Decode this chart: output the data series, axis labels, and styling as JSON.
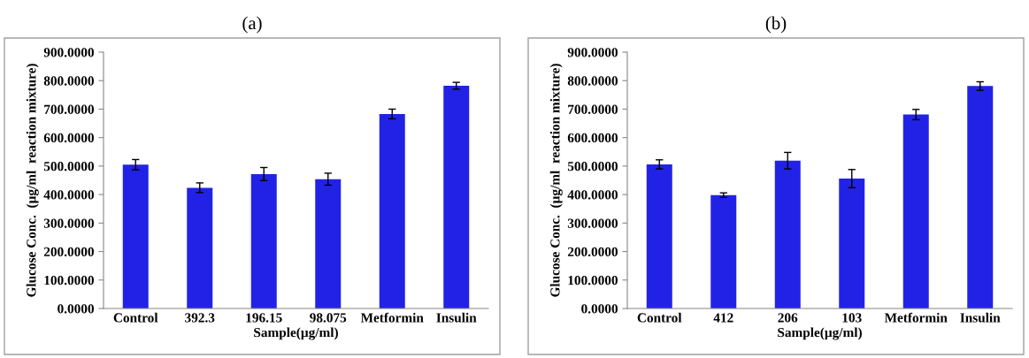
{
  "chart_data": [
    {
      "type": "bar",
      "title": "(a)",
      "xlabel": "Sample(µg/ml)",
      "ylabel": "Glucose Conc.  (µg/ml  reaction mixture)",
      "categories": [
        "Control",
        "392.3",
        "196.15",
        "98.075",
        "Metformin",
        "Insulin"
      ],
      "color": "#2222e6",
      "values": [
        505,
        424,
        472,
        454,
        683,
        782
      ],
      "errors": [
        18,
        17,
        23,
        21,
        17,
        12
      ],
      "ylim": [
        0,
        900
      ],
      "yticks": [
        {
          "value": 0,
          "label": "0.0000"
        },
        {
          "value": 100,
          "label": "100.0000"
        },
        {
          "value": 200,
          "label": "200.0000"
        },
        {
          "value": 300,
          "label": "300.0000"
        },
        {
          "value": 400,
          "label": "400.0000"
        },
        {
          "value": 500,
          "label": "500.0000"
        },
        {
          "value": 600,
          "label": "600.0000"
        },
        {
          "value": 700,
          "label": "700.0000"
        },
        {
          "value": 800,
          "label": "800.0000"
        },
        {
          "value": 900,
          "label": "900.0000"
        }
      ]
    },
    {
      "type": "bar",
      "title": "(b)",
      "xlabel": "Sample(µg/ml)",
      "ylabel": "Glucose Conc.  (µg/ml  reaction mixture)",
      "categories": [
        "Control",
        "412",
        "206",
        "103",
        "Metformin",
        "Insulin"
      ],
      "color": "#2222e6",
      "values": [
        506,
        398,
        519,
        456,
        681,
        781
      ],
      "errors": [
        16,
        8,
        29,
        32,
        18,
        15
      ],
      "ylim": [
        0,
        900
      ],
      "yticks": [
        {
          "value": 0,
          "label": "0.0000"
        },
        {
          "value": 100,
          "label": "100.0000"
        },
        {
          "value": 200,
          "label": "200.0000"
        },
        {
          "value": 300,
          "label": "300.0000"
        },
        {
          "value": 400,
          "label": "400.0000"
        },
        {
          "value": 500,
          "label": "500.0000"
        },
        {
          "value": 600,
          "label": "600.0000"
        },
        {
          "value": 700,
          "label": "700.0000"
        },
        {
          "value": 800,
          "label": "800.0000"
        },
        {
          "value": 900,
          "label": "900.0000"
        }
      ]
    }
  ]
}
